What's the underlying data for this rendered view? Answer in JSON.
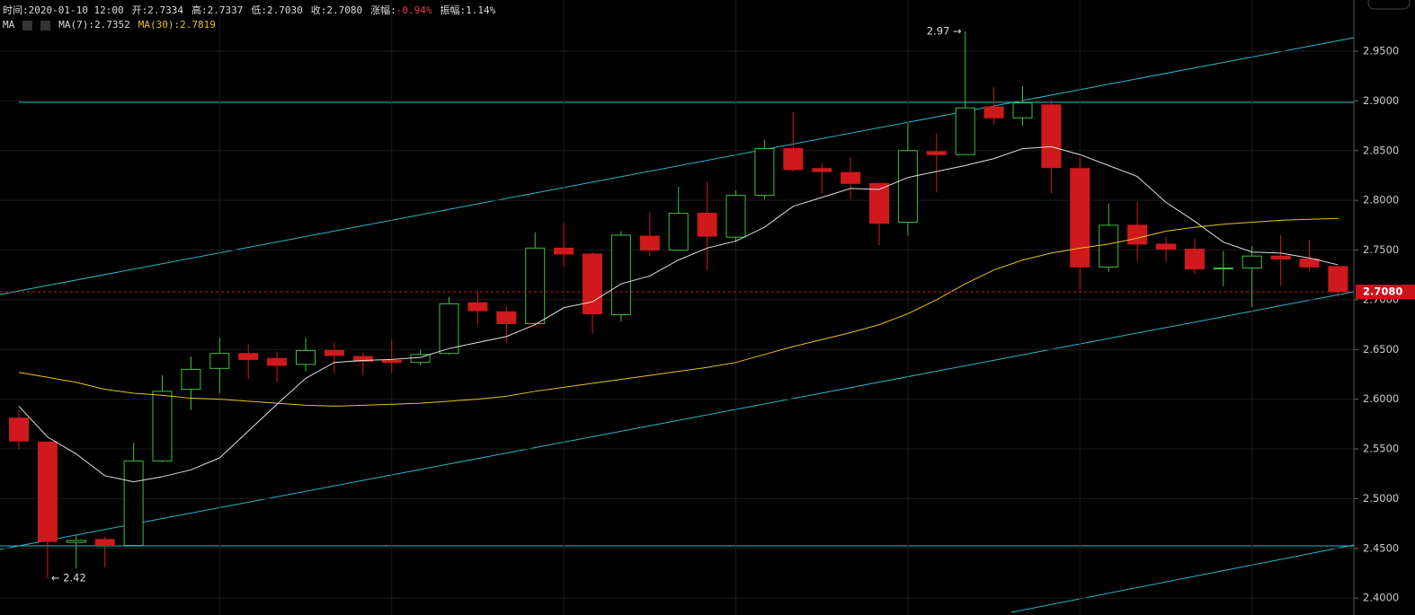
{
  "chart_data": {
    "type": "candlestick",
    "header": [
      {
        "label": "时间:",
        "value": "2020-01-10 12:00"
      },
      {
        "label": "开:",
        "value": "2.7334"
      },
      {
        "label": "高:",
        "value": "2.7337"
      },
      {
        "label": "低:",
        "value": "2.7030"
      },
      {
        "label": "收:",
        "value": "2.7080"
      },
      {
        "label": "涨幅:",
        "value": "-0.94%",
        "color": "#f0393e"
      },
      {
        "label": "振幅:",
        "value": "1.14%"
      }
    ],
    "indicator": "MA",
    "candles": {
      "open": [
        2.581,
        2.557,
        2.456,
        2.459,
        2.453,
        2.538,
        2.61,
        2.631,
        2.646,
        2.641,
        2.635,
        2.649,
        2.643,
        2.639,
        2.637,
        2.646,
        2.697,
        2.688,
        2.676,
        2.752,
        2.746,
        2.685,
        2.764,
        2.75,
        2.787,
        2.763,
        2.805,
        2.852,
        2.832,
        2.828,
        2.817,
        2.778,
        2.849,
        2.846,
        2.894,
        2.883,
        2.896,
        2.832,
        2.733,
        2.775,
        2.756,
        2.751,
        2.731,
        2.732,
        2.744,
        2.741,
        2.7334
      ],
      "high": [
        2.589,
        2.557,
        2.464,
        2.462,
        2.556,
        2.624,
        2.643,
        2.662,
        2.655,
        2.648,
        2.662,
        2.657,
        2.647,
        2.66,
        2.65,
        2.703,
        2.708,
        2.693,
        2.768,
        2.777,
        2.748,
        2.769,
        2.788,
        2.814,
        2.819,
        2.81,
        2.861,
        2.889,
        2.837,
        2.843,
        2.817,
        2.878,
        2.867,
        2.97,
        2.914,
        2.915,
        2.901,
        2.843,
        2.797,
        2.799,
        2.763,
        2.761,
        2.749,
        2.754,
        2.765,
        2.76,
        2.7337
      ],
      "low": [
        2.55,
        2.42,
        2.43,
        2.431,
        2.452,
        2.537,
        2.589,
        2.606,
        2.62,
        2.617,
        2.628,
        2.626,
        2.624,
        2.626,
        2.634,
        2.645,
        2.675,
        2.657,
        2.674,
        2.734,
        2.666,
        2.678,
        2.744,
        2.75,
        2.73,
        2.758,
        2.801,
        2.829,
        2.807,
        2.801,
        2.755,
        2.765,
        2.808,
        2.846,
        2.876,
        2.875,
        2.807,
        2.71,
        2.728,
        2.739,
        2.738,
        2.726,
        2.714,
        2.693,
        2.714,
        2.729,
        2.703
      ],
      "close": [
        2.558,
        2.457,
        2.458,
        2.453,
        2.538,
        2.608,
        2.63,
        2.646,
        2.64,
        2.634,
        2.649,
        2.644,
        2.638,
        2.637,
        2.645,
        2.696,
        2.689,
        2.676,
        2.752,
        2.746,
        2.686,
        2.765,
        2.75,
        2.787,
        2.764,
        2.805,
        2.852,
        2.831,
        2.829,
        2.817,
        2.777,
        2.85,
        2.846,
        2.893,
        2.883,
        2.898,
        2.833,
        2.733,
        2.775,
        2.756,
        2.751,
        2.731,
        2.732,
        2.744,
        2.741,
        2.733,
        2.708
      ]
    },
    "up_color": "#3fbf3f",
    "down_color": "#d0191c",
    "ma": [
      {
        "label": "MA(7):2.7352",
        "color": "#e0e0e0",
        "values": [
          2.593,
          2.562,
          2.545,
          2.523,
          2.517,
          2.522,
          2.529,
          2.541,
          2.568,
          2.595,
          2.621,
          2.637,
          2.639,
          2.64,
          2.642,
          2.651,
          2.657,
          2.663,
          2.675,
          2.692,
          2.698,
          2.716,
          2.724,
          2.74,
          2.752,
          2.759,
          2.773,
          2.794,
          2.803,
          2.812,
          2.811,
          2.823,
          2.829,
          2.835,
          2.842,
          2.852,
          2.854,
          2.846,
          2.835,
          2.824,
          2.798,
          2.779,
          2.758,
          2.748,
          2.747,
          2.742,
          2.7352
        ]
      },
      {
        "label": "MA(30):2.7819",
        "color": "#e8c020",
        "values": [
          2.627,
          2.622,
          2.617,
          2.61,
          2.606,
          2.604,
          2.601,
          2.6,
          2.598,
          2.596,
          2.594,
          2.593,
          2.594,
          2.595,
          2.596,
          2.598,
          2.6,
          2.603,
          2.608,
          2.612,
          2.616,
          2.62,
          2.624,
          2.628,
          2.632,
          2.637,
          2.645,
          2.653,
          2.66,
          2.667,
          2.675,
          2.686,
          2.7,
          2.716,
          2.73,
          2.74,
          2.747,
          2.752,
          2.756,
          2.762,
          2.769,
          2.773,
          2.776,
          2.778,
          2.78,
          2.781,
          2.7819
        ]
      }
    ],
    "high_label": "2.97 →",
    "low_label": "← 2.42",
    "last_price": {
      "value": 2.708,
      "label": "2.7080"
    },
    "ylim": [
      2.383,
      3.0015
    ],
    "yticks": [
      {
        "value": 2.4,
        "label": "2.4000"
      },
      {
        "value": 2.45,
        "label": "2.4500"
      },
      {
        "value": 2.5,
        "label": "2.5000"
      },
      {
        "value": 2.55,
        "label": "2.5500"
      },
      {
        "value": 2.6,
        "label": "2.6000"
      },
      {
        "value": 2.65,
        "label": "2.6500"
      },
      {
        "value": 2.7,
        "label": "2.7000"
      },
      {
        "value": 2.75,
        "label": "2.7500"
      },
      {
        "value": 2.8,
        "label": "2.8000"
      },
      {
        "value": 2.85,
        "label": "2.8500"
      },
      {
        "value": 2.9,
        "label": "2.9000"
      },
      {
        "value": 2.95,
        "label": "2.9500"
      }
    ],
    "grid": true
  }
}
